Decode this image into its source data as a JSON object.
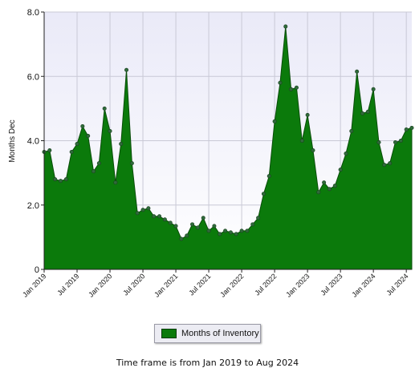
{
  "chart_data": {
    "type": "area",
    "ylabel": "Months Dec",
    "ylim": [
      0,
      8
    ],
    "yticks": [
      "0",
      "2.0",
      "4.0",
      "6.0",
      "8.0"
    ],
    "grid": true,
    "x_tick_labels": [
      "Jan 2019",
      "Jul 2019",
      "Jan 2020",
      "Jul 2020",
      "Jan 2021",
      "Jul 2021",
      "Jan 2022",
      "Jul 2022",
      "Jan 2023",
      "Jul 2023",
      "Jan 2024",
      "Jul 2024"
    ],
    "series": [
      {
        "name": "Months of Inventory",
        "color": "#0b7a0b",
        "x": [
          "Jan 2019",
          "Feb 2019",
          "Mar 2019",
          "Apr 2019",
          "May 2019",
          "Jun 2019",
          "Jul 2019",
          "Aug 2019",
          "Sep 2019",
          "Oct 2019",
          "Nov 2019",
          "Dec 2019",
          "Jan 2020",
          "Feb 2020",
          "Mar 2020",
          "Apr 2020",
          "May 2020",
          "Jun 2020",
          "Jul 2020",
          "Aug 2020",
          "Sep 2020",
          "Oct 2020",
          "Nov 2020",
          "Dec 2020",
          "Jan 2021",
          "Feb 2021",
          "Mar 2021",
          "Apr 2021",
          "May 2021",
          "Jun 2021",
          "Jul 2021",
          "Aug 2021",
          "Sep 2021",
          "Oct 2021",
          "Nov 2021",
          "Dec 2021",
          "Jan 2022",
          "Feb 2022",
          "Mar 2022",
          "Apr 2022",
          "May 2022",
          "Jun 2022",
          "Jul 2022",
          "Aug 2022",
          "Sep 2022",
          "Oct 2022",
          "Nov 2022",
          "Dec 2022",
          "Jan 2023",
          "Feb 2023",
          "Mar 2023",
          "Apr 2023",
          "May 2023",
          "Jun 2023",
          "Jul 2023",
          "Aug 2023",
          "Sep 2023",
          "Oct 2023",
          "Nov 2023",
          "Dec 2023",
          "Jan 2024",
          "Feb 2024",
          "Mar 2024",
          "Apr 2024",
          "May 2024",
          "Jun 2024",
          "Jul 2024",
          "Aug 2024"
        ],
        "values": [
          3.65,
          3.7,
          2.8,
          2.75,
          2.8,
          3.65,
          3.9,
          4.45,
          4.15,
          3.05,
          3.3,
          5.0,
          4.3,
          2.7,
          3.9,
          6.2,
          3.3,
          1.75,
          1.85,
          1.9,
          1.65,
          1.65,
          1.55,
          1.45,
          1.35,
          0.95,
          1.05,
          1.4,
          1.3,
          1.6,
          1.2,
          1.35,
          1.1,
          1.2,
          1.15,
          1.1,
          1.2,
          1.2,
          1.4,
          1.6,
          2.35,
          2.9,
          4.6,
          5.8,
          7.55,
          5.6,
          5.65,
          4.0,
          4.8,
          3.7,
          2.4,
          2.7,
          2.5,
          2.6,
          3.1,
          3.6,
          4.3,
          6.15,
          4.85,
          4.9,
          5.6,
          3.95,
          3.25,
          3.3,
          3.95,
          4.0,
          4.35,
          4.4
        ]
      }
    ]
  },
  "legend": {
    "label": "Months of Inventory"
  },
  "footer": {
    "timeframe": "Time frame is from Jan 2019 to Aug 2024"
  }
}
